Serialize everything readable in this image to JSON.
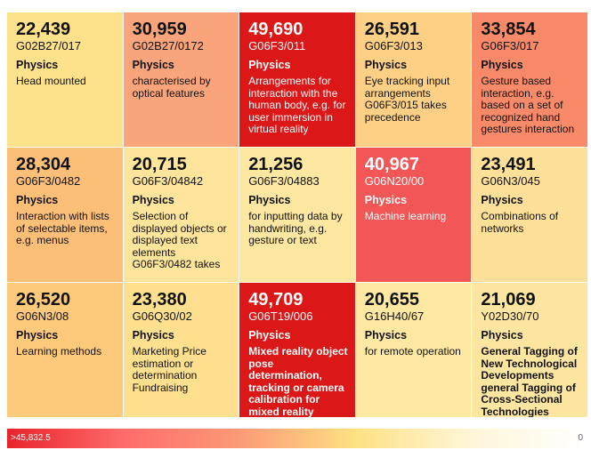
{
  "chart_data": {
    "type": "treemap-grid",
    "cells": [
      {
        "value": "22,439",
        "code": "G02B27/017",
        "category": "Physics",
        "desc": "Head mounted",
        "color": "#fee18b"
      },
      {
        "value": "30,959",
        "code": "G02B27/0172",
        "category": "Physics",
        "desc": "characterised by optical features",
        "color": "#f9a47b"
      },
      {
        "value": "49,690",
        "code": "G06F3/011",
        "category": "Physics",
        "desc": "Arrangements for interaction with the human body, e.g. for user immersion in virtual reality",
        "color": "#dc1717"
      },
      {
        "value": "26,591",
        "code": "G06F3/013",
        "category": "Physics",
        "desc": "Eye tracking input arrangements G06F3/015 takes precedence",
        "color": "#fdd085"
      },
      {
        "value": "33,854",
        "code": "G06F3/017",
        "category": "Physics",
        "desc": "Gesture based interaction, e.g. based on a set of recognized hand gestures interaction",
        "color": "#f88a6a"
      },
      {
        "value": "28,304",
        "code": "G06F3/0482",
        "category": "Physics",
        "desc": "Interaction with lists of selectable items, e.g. menus",
        "color": "#fcbf78"
      },
      {
        "value": "20,715",
        "code": "G06F3/04842",
        "category": "Physics",
        "desc": "Selection of displayed objects or displayed text elements G06F3/0482 takes",
        "color": "#fee59b"
      },
      {
        "value": "21,256",
        "code": "G06F3/04883",
        "category": "Physics",
        "desc": "for inputting data by handwriting, e.g. gesture or text",
        "color": "#fee7a0"
      },
      {
        "value": "40,967",
        "code": "G06N20/00",
        "category": "Physics",
        "desc": "Machine learning",
        "color": "#f25656"
      },
      {
        "value": "23,491",
        "code": "G06N3/045",
        "category": "Physics",
        "desc": "Combinations of networks",
        "color": "#fee098"
      },
      {
        "value": "26,520",
        "code": "G06N3/08",
        "category": "Physics",
        "desc": "Learning methods",
        "color": "#fdca7c"
      },
      {
        "value": "23,380",
        "code": "G06Q30/02",
        "category": "Physics",
        "desc": "Marketing Price estimation or determination Fundraising",
        "color": "#fee08e"
      },
      {
        "value": "49,709",
        "code": "G06T19/006",
        "category": "Physics",
        "desc": "Mixed reality object pose determination, tracking or camera calibration for mixed reality",
        "color": "#dc1717",
        "bold": true
      },
      {
        "value": "20,655",
        "code": "G16H40/67",
        "category": "Physics",
        "desc": "for remote operation",
        "color": "#fee8a2"
      },
      {
        "value": "21,069",
        "code": "Y02D30/70",
        "category": "Physics",
        "desc": "General Tagging of New Technological Developments general Tagging of Cross-Sectional Technologies Spanning Over",
        "color": "#fee6a0",
        "bold": true
      }
    ],
    "legend": {
      "max_label": ">45,832.5",
      "min_label": "0"
    }
  }
}
